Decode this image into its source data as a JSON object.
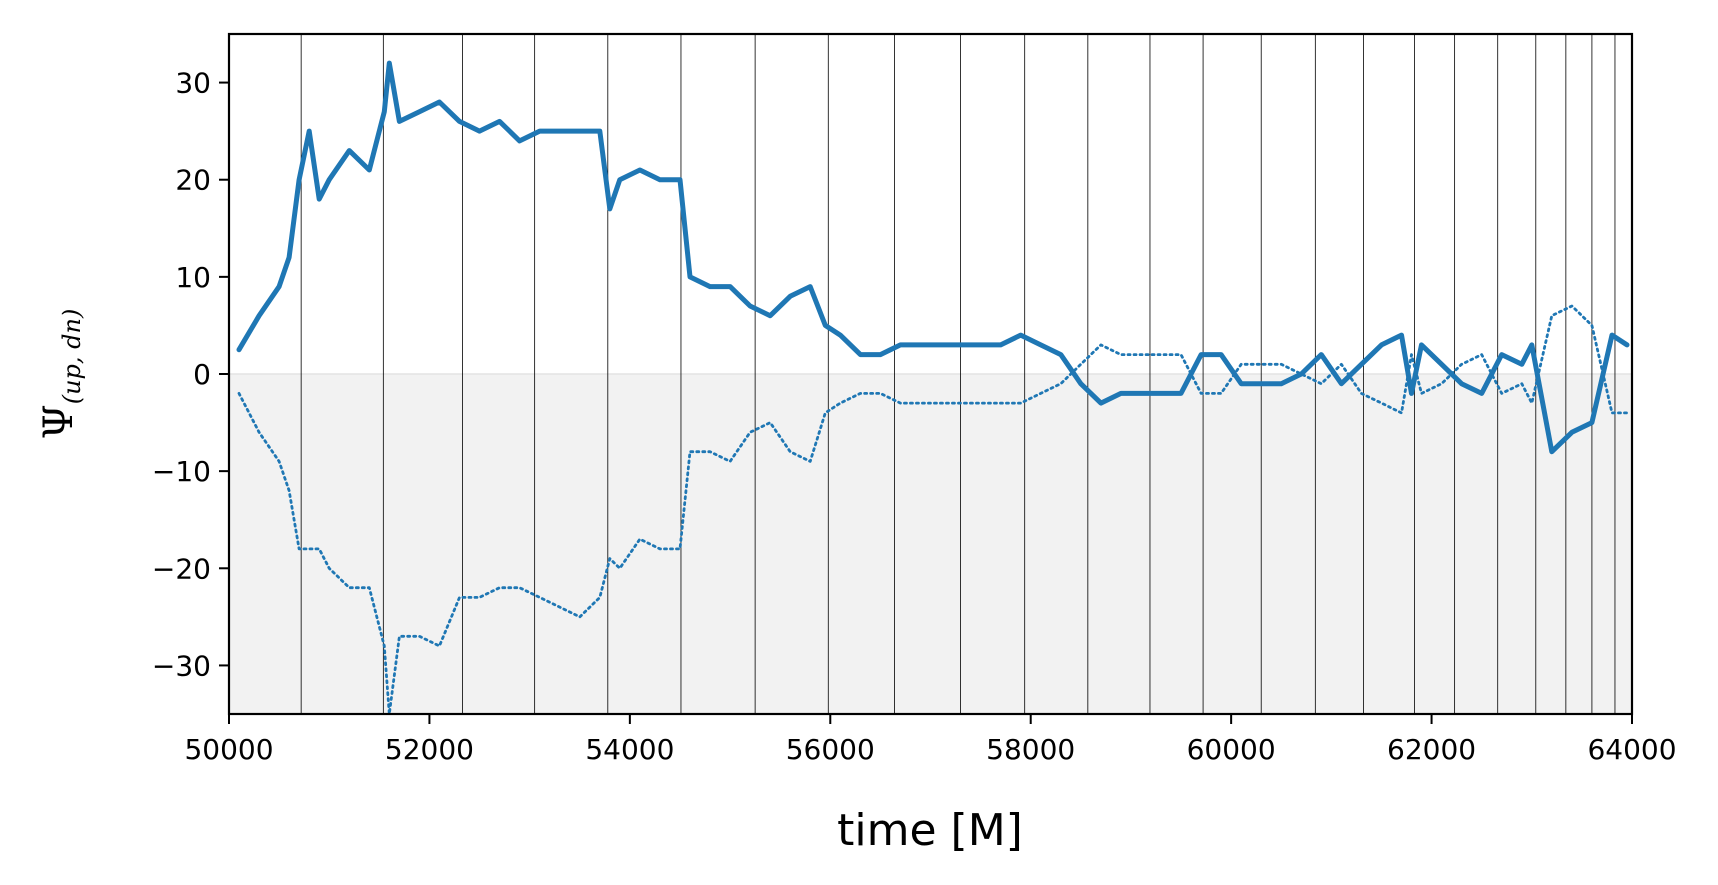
{
  "chart_data": {
    "type": "line",
    "xlabel": "time [M]",
    "ylabel": "Ψ",
    "ylabel_subscript": "(up, dn)",
    "xlim": [
      50000,
      64000
    ],
    "ylim": [
      -35,
      35
    ],
    "xticks": [
      50000,
      52000,
      54000,
      56000,
      58000,
      60000,
      62000,
      64000
    ],
    "yticks": [
      -30,
      -20,
      -10,
      0,
      10,
      20,
      30
    ],
    "xtick_labels": [
      "50000",
      "52000",
      "54000",
      "56000",
      "58000",
      "60000",
      "62000",
      "64000"
    ],
    "ytick_labels": [
      "−30",
      "−20",
      "−10",
      "0",
      "10",
      "20",
      "30"
    ],
    "negative_region_shaded": true,
    "shade_color": "#f2f2f2",
    "grid": false,
    "vlines": [
      50720,
      51540,
      52330,
      53050,
      53780,
      54510,
      55250,
      55980,
      56640,
      57300,
      57940,
      58570,
      59190,
      59720,
      60300,
      60840,
      61320,
      61830,
      62230,
      62660,
      63040,
      63340,
      63600,
      63830
    ],
    "series": [
      {
        "style": "solid",
        "color": "#1f77b4",
        "x": [
          50100,
          50300,
          50500,
          50600,
          50700,
          50800,
          50900,
          51000,
          51200,
          51400,
          51550,
          51600,
          51700,
          51900,
          52100,
          52300,
          52500,
          52700,
          52900,
          53100,
          53300,
          53500,
          53700,
          53800,
          53900,
          54100,
          54300,
          54500,
          54600,
          54800,
          55000,
          55200,
          55400,
          55600,
          55800,
          55950,
          56100,
          56300,
          56500,
          56700,
          56900,
          57100,
          57300,
          57500,
          57700,
          57900,
          58100,
          58300,
          58500,
          58700,
          58900,
          59100,
          59300,
          59500,
          59700,
          59900,
          60100,
          60300,
          60500,
          60700,
          60900,
          61100,
          61300,
          61500,
          61700,
          61800,
          61900,
          62100,
          62300,
          62500,
          62700,
          62900,
          63000,
          63200,
          63400,
          63600,
          63800,
          63950
        ],
        "y": [
          2.5,
          6,
          9,
          12,
          20,
          25,
          18,
          20,
          23,
          21,
          27,
          32,
          26,
          27,
          28,
          26,
          25,
          26,
          24,
          25,
          25,
          25,
          25,
          17,
          20,
          21,
          20,
          20,
          10,
          9,
          9,
          7,
          6,
          8,
          9,
          5,
          4,
          2,
          2,
          3,
          3,
          3,
          3,
          3,
          3,
          4,
          3,
          2,
          -1,
          -3,
          -2,
          -2,
          -2,
          -2,
          2,
          2,
          -1,
          -1,
          -1,
          0,
          2,
          -1,
          1,
          3,
          4,
          -2,
          3,
          1,
          -1,
          -2,
          2,
          1,
          3,
          -8,
          -6,
          -5,
          4,
          3
        ]
      },
      {
        "style": "dotted",
        "color": "#1f77b4",
        "x": [
          50100,
          50300,
          50500,
          50600,
          50700,
          50800,
          50900,
          51000,
          51200,
          51400,
          51550,
          51600,
          51700,
          51900,
          52100,
          52300,
          52500,
          52700,
          52900,
          53100,
          53300,
          53500,
          53700,
          53800,
          53900,
          54100,
          54300,
          54500,
          54600,
          54800,
          55000,
          55200,
          55400,
          55600,
          55800,
          55950,
          56100,
          56300,
          56500,
          56700,
          56900,
          57100,
          57300,
          57500,
          57700,
          57900,
          58100,
          58300,
          58500,
          58700,
          58900,
          59100,
          59300,
          59500,
          59700,
          59900,
          60100,
          60300,
          60500,
          60700,
          60900,
          61100,
          61300,
          61500,
          61700,
          61800,
          61900,
          62100,
          62300,
          62500,
          62700,
          62900,
          63000,
          63200,
          63400,
          63600,
          63800,
          63950
        ],
        "y": [
          -2,
          -6,
          -9,
          -12,
          -18,
          -18,
          -18,
          -20,
          -22,
          -22,
          -28,
          -35,
          -27,
          -27,
          -28,
          -23,
          -23,
          -22,
          -22,
          -23,
          -24,
          -25,
          -23,
          -19,
          -20,
          -17,
          -18,
          -18,
          -8,
          -8,
          -9,
          -6,
          -5,
          -8,
          -9,
          -4,
          -3,
          -2,
          -2,
          -3,
          -3,
          -3,
          -3,
          -3,
          -3,
          -3,
          -2,
          -1,
          1,
          3,
          2,
          2,
          2,
          2,
          -2,
          -2,
          1,
          1,
          1,
          0,
          -1,
          1,
          -2,
          -3,
          -4,
          2,
          -2,
          -1,
          1,
          2,
          -2,
          -1,
          -3,
          6,
          7,
          5,
          -4,
          -4
        ]
      }
    ]
  }
}
